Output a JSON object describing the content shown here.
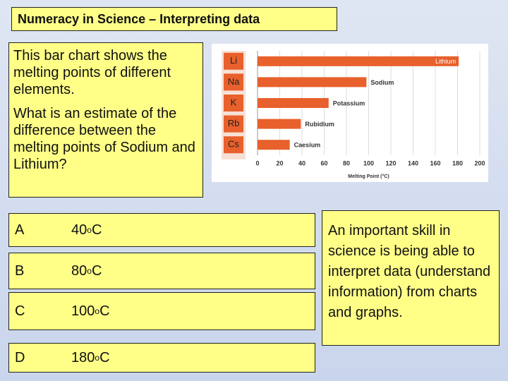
{
  "title": "Numeracy in Science – Interpreting data",
  "question": {
    "lines": [
      "This bar chart shows the melting points of different elements.",
      "What is an estimate of the difference between the melting points of Sodium and Lithium?"
    ]
  },
  "options": [
    {
      "letter": "A",
      "value": "40",
      "degree": "o",
      "unit": "C"
    },
    {
      "letter": "B",
      "value": "80",
      "degree": "o",
      "unit": "C"
    },
    {
      "letter": "C",
      "value": "100",
      "degree": "o",
      "unit": "C"
    },
    {
      "letter": "D",
      "value": "180",
      "degree": "o",
      "unit": "C"
    }
  ],
  "note": "An important skill in science is being able to interpret data (understand information) from charts and graphs.",
  "chart_data": {
    "type": "hbar",
    "categories": [
      "Lithium",
      "Sodium",
      "Potassium",
      "Rubidium",
      "Caesium"
    ],
    "symbols": [
      "Li",
      "Na",
      "K",
      "Rb",
      "Cs"
    ],
    "values": [
      181,
      98,
      64,
      39,
      29
    ],
    "color": "#e8602c",
    "xlabel": "Melting Point (°C)",
    "xlim": [
      0,
      200
    ],
    "xticks": [
      0,
      20,
      40,
      60,
      80,
      100,
      120,
      140,
      160,
      180,
      200
    ],
    "grid": true
  }
}
